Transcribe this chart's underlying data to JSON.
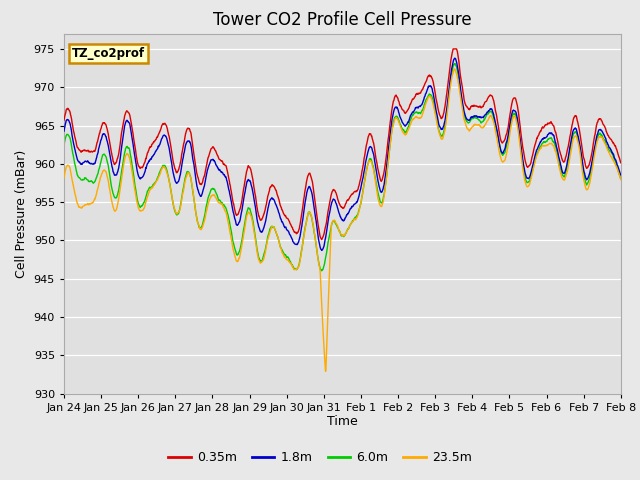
{
  "title": "Tower CO2 Profile Cell Pressure",
  "xlabel": "Time",
  "ylabel": "Cell Pressure (mBar)",
  "ylim": [
    930,
    977
  ],
  "yticks": [
    930,
    935,
    940,
    945,
    950,
    955,
    960,
    965,
    970,
    975
  ],
  "xtick_labels": [
    "Jan 24",
    "Jan 25",
    "Jan 26",
    "Jan 27",
    "Jan 28",
    "Jan 29",
    "Jan 30",
    "Jan 31",
    "Feb 1",
    "Feb 2",
    "Feb 3",
    "Feb 4",
    "Feb 5",
    "Feb 6",
    "Feb 7",
    "Feb 8"
  ],
  "series_colors": [
    "#dd0000",
    "#0000cc",
    "#00cc00",
    "#ffaa00"
  ],
  "series_labels": [
    "0.35m",
    "1.8m",
    "6.0m",
    "23.5m"
  ],
  "line_width": 1.0,
  "fig_facecolor": "#e8e8e8",
  "ax_facecolor": "#e0e0e0",
  "grid_color": "#ffffff",
  "label_box_text": "TZ_co2prof",
  "label_box_facecolor": "#ffffcc",
  "label_box_edgecolor": "#cc8800",
  "title_fontsize": 12,
  "axis_fontsize": 9,
  "tick_fontsize": 8,
  "legend_fontsize": 9
}
